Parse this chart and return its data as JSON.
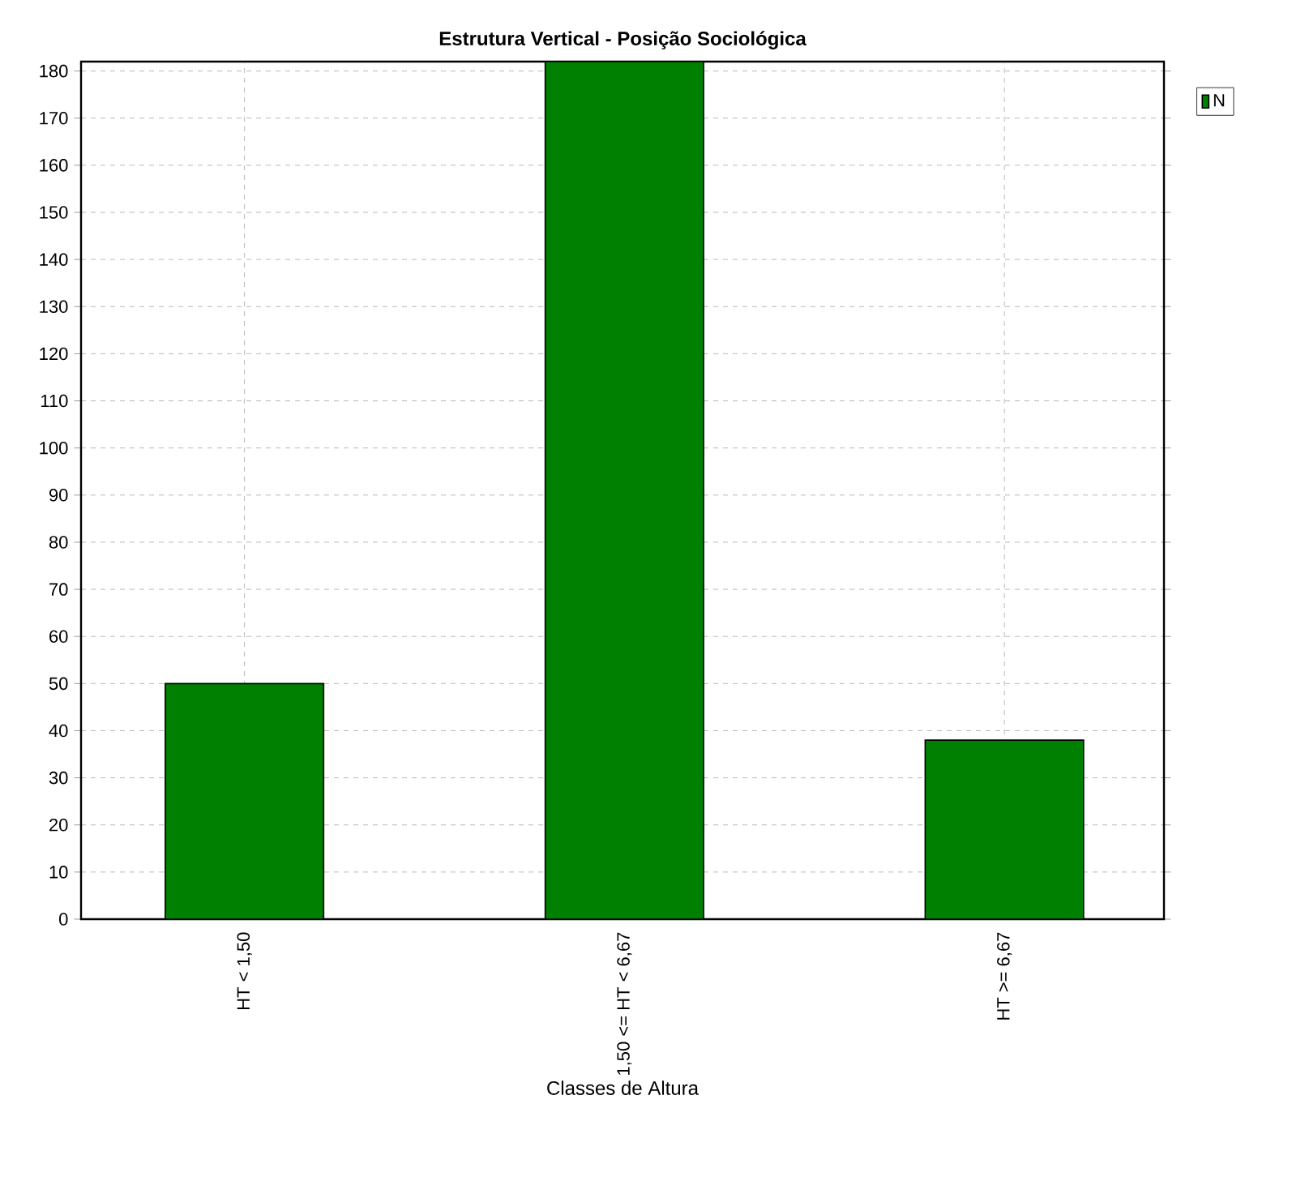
{
  "chart_data": {
    "type": "bar",
    "title": "Estrutura Vertical - Posição Sociológica",
    "xlabel": "Classes de Altura",
    "categories": [
      "HT < 1,50",
      "1,50 <= HT < 6,67",
      "HT >= 6,67"
    ],
    "series": [
      {
        "name": "N",
        "color": "#008000",
        "values": [
          50,
          182,
          38
        ]
      }
    ],
    "ylim": [
      0,
      182
    ],
    "yticks": [
      0,
      10,
      20,
      30,
      40,
      50,
      60,
      70,
      80,
      90,
      100,
      110,
      120,
      130,
      140,
      150,
      160,
      170,
      180
    ],
    "grid": true,
    "legend": "top right"
  }
}
